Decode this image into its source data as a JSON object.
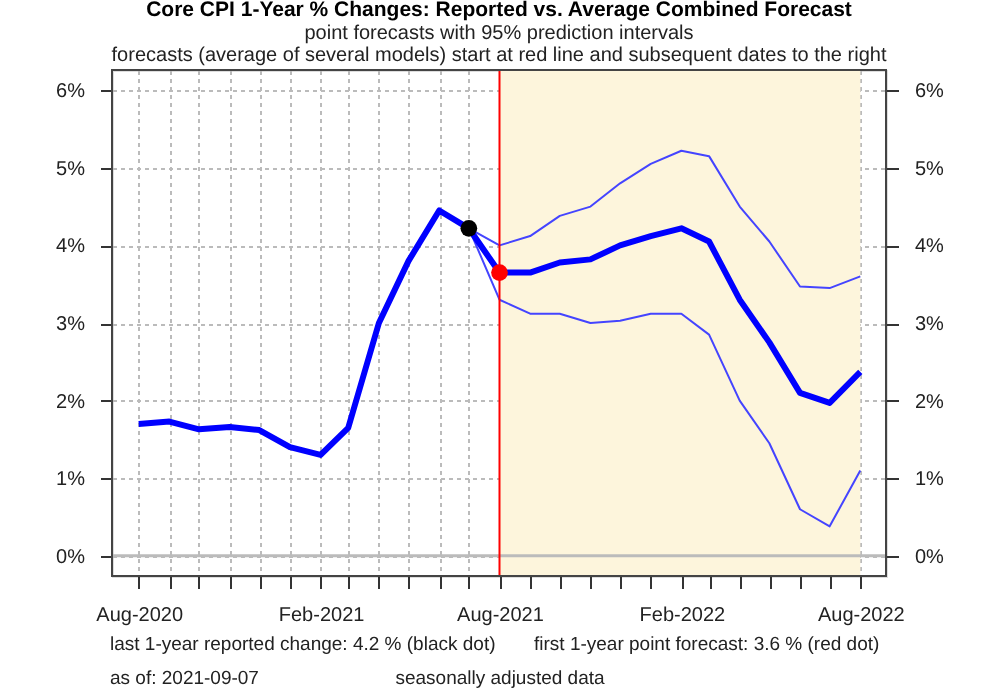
{
  "chart_data": {
    "type": "line",
    "title": "Core CPI 1-Year % Changes: Reported vs. Average Combined Forecast",
    "subtitle": "point forecasts with 95% prediction intervals\nforecasts (average of several models) start at red line and subsequent dates to the right",
    "x": [
      "2020-08",
      "2020-09",
      "2020-10",
      "2020-11",
      "2020-12",
      "2021-01",
      "2021-02",
      "2021-03",
      "2021-04",
      "2021-05",
      "2021-06",
      "2021-07",
      "2021-08",
      "2021-09",
      "2021-10",
      "2021-11",
      "2021-12",
      "2022-01",
      "2022-02",
      "2022-03",
      "2022-04",
      "2022-05",
      "2022-06",
      "2022-07",
      "2022-08"
    ],
    "series": [
      {
        "color": "#0000ff",
        "values": [
          1.7,
          1.73,
          1.63,
          1.66,
          1.62,
          1.4,
          1.3,
          1.65,
          3.0,
          3.8,
          4.45,
          4.22,
          3.65,
          3.65,
          3.78,
          3.82,
          4.0,
          4.12,
          4.22,
          4.05,
          3.3,
          2.75,
          2.1,
          1.97,
          2.37
        ]
      },
      {
        "color": "#4444ff",
        "x": [
          "2021-07",
          "2021-08",
          "2021-09",
          "2021-10",
          "2021-11",
          "2021-12",
          "2022-01",
          "2022-02",
          "2022-03",
          "2022-04",
          "2022-05",
          "2022-06",
          "2022-07",
          "2022-08"
        ],
        "values": [
          4.22,
          3.3,
          3.12,
          3.12,
          3.0,
          3.03,
          3.12,
          3.12,
          2.85,
          2.0,
          1.45,
          0.6,
          0.38,
          1.1
        ]
      },
      {
        "color": "#4444ff",
        "x": [
          "2021-07",
          "2021-08",
          "2021-09",
          "2021-10",
          "2021-11",
          "2021-12",
          "2022-01",
          "2022-02",
          "2022-03",
          "2022-04",
          "2022-05",
          "2022-06",
          "2022-07",
          "2022-08"
        ],
        "values": [
          4.22,
          4.0,
          4.12,
          4.38,
          4.5,
          4.8,
          5.05,
          5.22,
          5.15,
          4.5,
          4.05,
          3.47,
          3.45,
          3.6
        ]
      },
      {
        "type": "scatter",
        "marker": "circle",
        "color": "#000000",
        "x": [
          "2021-07"
        ],
        "values": [
          4.22
        ]
      },
      {
        "type": "scatter",
        "marker": "circle",
        "color": "#ff0000",
        "x": [
          "2021-08"
        ],
        "values": [
          3.65
        ]
      }
    ],
    "xlim": [
      "2020-07-05",
      "2022-08-27"
    ],
    "xticks": [
      {
        "value": "2020-08",
        "label": "Aug-2020"
      },
      {
        "value": "2020-09",
        "label": null
      },
      {
        "value": "2020-10",
        "label": null
      },
      {
        "value": "2020-11",
        "label": null
      },
      {
        "value": "2020-12",
        "label": null
      },
      {
        "value": "2021-01",
        "label": null
      },
      {
        "value": "2021-02",
        "label": "Feb-2021"
      },
      {
        "value": "2021-03",
        "label": null
      },
      {
        "value": "2021-04",
        "label": null
      },
      {
        "value": "2021-05",
        "label": null
      },
      {
        "value": "2021-06",
        "label": null
      },
      {
        "value": "2021-07",
        "label": null
      },
      {
        "value": "2021-08",
        "label": "Aug-2021"
      },
      {
        "value": "2021-09",
        "label": null
      },
      {
        "value": "2021-10",
        "label": null
      },
      {
        "value": "2021-11",
        "label": null
      },
      {
        "value": "2021-12",
        "label": null
      },
      {
        "value": "2022-01",
        "label": null
      },
      {
        "value": "2022-02",
        "label": "Feb-2022"
      },
      {
        "value": "2022-03",
        "label": null
      },
      {
        "value": "2022-04",
        "label": null
      },
      {
        "value": "2022-05",
        "label": null
      },
      {
        "value": "2022-06",
        "label": null
      },
      {
        "value": "2022-07",
        "label": null
      },
      {
        "value": "2022-08",
        "label": "Aug-2022"
      }
    ],
    "ylim": [
      -0.26,
      6.26
    ],
    "yticks": [
      {
        "value": 0,
        "label": "0%"
      },
      {
        "value": 1,
        "label": "1%"
      },
      {
        "value": 2,
        "label": "2%"
      },
      {
        "value": 3,
        "label": "3%"
      },
      {
        "value": 4,
        "label": "4%"
      },
      {
        "value": 5,
        "label": "5%"
      },
      {
        "value": 6,
        "label": "6%"
      }
    ],
    "y2lim": [
      -0.26,
      6.26
    ],
    "y2ticks": [
      {
        "value": 0,
        "label": "0%"
      },
      {
        "value": 1,
        "label": "1%"
      },
      {
        "value": 2,
        "label": "2%"
      },
      {
        "value": 3,
        "label": "3%"
      },
      {
        "value": 4,
        "label": "4%"
      },
      {
        "value": 5,
        "label": "5%"
      },
      {
        "value": 6,
        "label": "6%"
      }
    ],
    "ref_lines": [
      {
        "axis": "x",
        "value": "2021-08",
        "color": "#ff0000"
      },
      {
        "axis": "y",
        "value": 0,
        "color": "#bbbbbb"
      }
    ],
    "bands": [
      {
        "axis": "x",
        "from": "2021-08",
        "to": "2022-08",
        "color": "#fdf5dc"
      }
    ],
    "annotations": [
      "last 1-year reported change:  4.2  % (black dot)",
      "first 1-year point forecast:   3.6 % (red dot)",
      "as of:  2021-09-07",
      "seasonally adjusted data"
    ],
    "grid": true,
    "marker": "none",
    "line_style": "solid"
  }
}
